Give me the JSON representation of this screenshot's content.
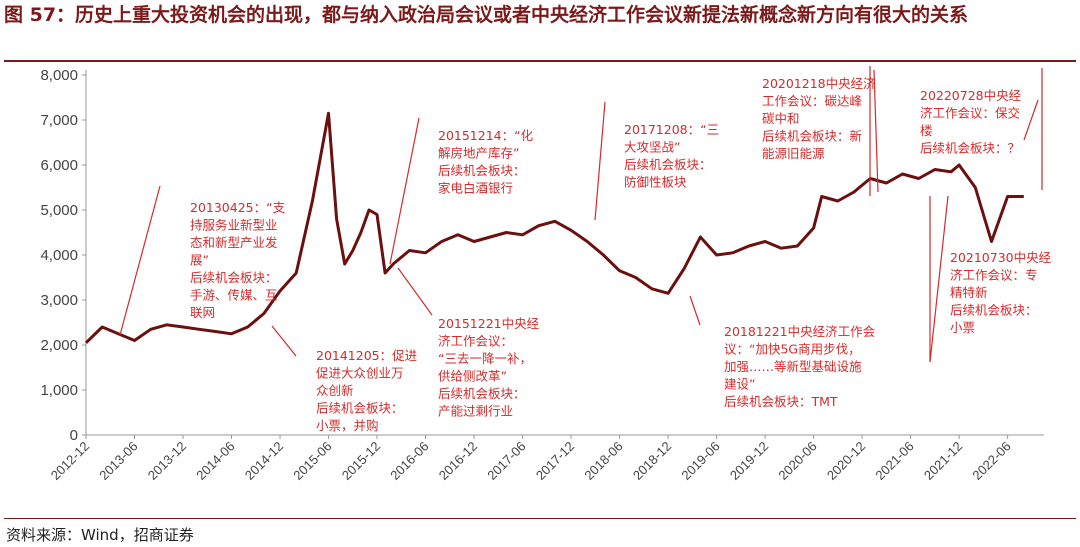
{
  "header": {
    "title": "图 57：历史上重大投资机会的出现，都与纳入政治局会议或者中央经济工作会议新提法新概念新方向有很大的关系"
  },
  "footer": {
    "source": "资料来源：Wind，招商证券"
  },
  "colors": {
    "line": "#6b0f0f",
    "annotation": "#d52b2b",
    "title": "#7a1a1a"
  },
  "chart_data": {
    "type": "line",
    "title": "",
    "xlabel": "",
    "ylabel": "",
    "ylim": [
      0,
      8000
    ],
    "grid": false,
    "yticks": [
      "0",
      "1,000",
      "2,000",
      "3,000",
      "4,000",
      "5,000",
      "6,000",
      "7,000",
      "8,000"
    ],
    "xticks": [
      "2012-12",
      "2013-06",
      "2013-12",
      "2014-06",
      "2014-12",
      "2015-06",
      "2015-12",
      "2016-06",
      "2016-12",
      "2017-06",
      "2017-12",
      "2018-06",
      "2018-12",
      "2019-06",
      "2019-12",
      "2020-06",
      "2020-12",
      "2021-06",
      "2021-12",
      "2022-06"
    ],
    "series": [
      {
        "x": [
          "2012-12",
          "2013-02",
          "2013-04",
          "2013-06",
          "2013-08",
          "2013-10",
          "2013-12",
          "2014-02",
          "2014-04",
          "2014-06",
          "2014-08",
          "2014-10",
          "2014-12",
          "2015-02",
          "2015-04",
          "2015-06",
          "2015-07",
          "2015-08",
          "2015-09",
          "2015-10",
          "2015-11",
          "2015-12",
          "2016-01",
          "2016-02",
          "2016-04",
          "2016-06",
          "2016-08",
          "2016-10",
          "2016-12",
          "2017-02",
          "2017-04",
          "2017-06",
          "2017-08",
          "2017-10",
          "2017-12",
          "2018-02",
          "2018-04",
          "2018-06",
          "2018-08",
          "2018-10",
          "2018-12",
          "2019-02",
          "2019-04",
          "2019-06",
          "2019-08",
          "2019-10",
          "2019-12",
          "2020-02",
          "2020-04",
          "2020-06",
          "2020-07",
          "2020-09",
          "2020-11",
          "2021-01",
          "2021-03",
          "2021-05",
          "2021-07",
          "2021-09",
          "2021-11",
          "2021-12",
          "2022-02",
          "2022-04",
          "2022-06",
          "2022-08"
        ],
        "values": [
          2050,
          2400,
          2250,
          2100,
          2350,
          2450,
          2400,
          2350,
          2300,
          2250,
          2400,
          2700,
          3200,
          3600,
          5200,
          7150,
          4800,
          3800,
          4100,
          4500,
          5000,
          4900,
          3600,
          3800,
          4100,
          4050,
          4300,
          4450,
          4300,
          4400,
          4500,
          4450,
          4650,
          4750,
          4550,
          4300,
          4000,
          3650,
          3500,
          3250,
          3150,
          3700,
          4400,
          4000,
          4050,
          4200,
          4300,
          4150,
          4200,
          4600,
          5300,
          5200,
          5400,
          5700,
          5600,
          5800,
          5700,
          5900,
          5850,
          6000,
          5500,
          4300,
          5300,
          5300
        ]
      }
    ],
    "annotations": [
      {
        "date": "2013-04",
        "lines": [
          "20130425：“支",
          "持服务业新型业",
          "态和新型产业发",
          "展”",
          "后续机会板块：",
          "手游、传媒、互",
          "联网"
        ]
      },
      {
        "date": "2014-12",
        "lines": [
          "20141205：促进",
          "促进大众创业万",
          "众创新",
          "后续机会板块：",
          "小票，并购"
        ]
      },
      {
        "date": "2015-12",
        "lines": [
          "20151214：“化",
          "解房地产库存”",
          "后续机会板块：",
          "家电白酒银行"
        ]
      },
      {
        "date": "2015-12",
        "lines": [
          "20151221中央经",
          "济工作会议：",
          "“三去一降一补，",
          "供给侧改革”",
          "后续机会板块：",
          "产能过剩行业"
        ]
      },
      {
        "date": "2017-12",
        "lines": [
          "20171208：“三",
          "大攻坚战”",
          "后续机会板块：",
          "防御性板块"
        ]
      },
      {
        "date": "2018-12",
        "lines": [
          "20181221中央经济工作会",
          "议：“加快5G商用步伐，",
          "加强……等新型基础设施",
          "建设”",
          "后续机会板块：TMT"
        ]
      },
      {
        "date": "2020-12",
        "lines": [
          "20201218中央经济",
          "工作会议：碳达峰",
          "碳中和",
          "后续机会板块：新",
          "能源旧能源"
        ]
      },
      {
        "date": "2021-07",
        "lines": [
          "20210730中央经",
          "济工作会议：专",
          "精特新",
          "后续机会板块：",
          "小票"
        ]
      },
      {
        "date": "2022-07",
        "lines": [
          "20220728中央经",
          "济工作会议：保交",
          "楼",
          "后续机会板块：？"
        ]
      }
    ]
  }
}
